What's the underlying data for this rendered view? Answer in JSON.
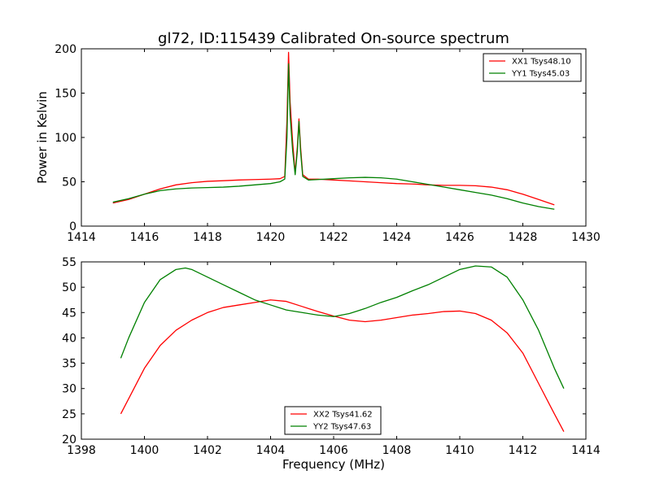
{
  "title": "gl72, ID:115439 Calibrated On-source spectrum",
  "colors": {
    "xx": "#ff0000",
    "yy": "#008000"
  },
  "chart_data": [
    {
      "type": "line",
      "xlabel": "",
      "ylabel": "Power in Kelvin",
      "xlim": [
        1414,
        1430
      ],
      "ylim": [
        0,
        200
      ],
      "xticks": [
        "1414",
        "1416",
        "1418",
        "1420",
        "1422",
        "1424",
        "1426",
        "1428",
        "1430"
      ],
      "yticks": [
        "0",
        "50",
        "100",
        "150",
        "200"
      ],
      "legend_position": "top-right",
      "series": [
        {
          "name": "XX1 Tsys48.10",
          "color": "#ff0000",
          "points": [
            [
              1415.0,
              26
            ],
            [
              1415.5,
              30
            ],
            [
              1416.0,
              36
            ],
            [
              1416.5,
              42
            ],
            [
              1417.0,
              46.5
            ],
            [
              1417.5,
              49
            ],
            [
              1418.0,
              50.5
            ],
            [
              1418.5,
              51.2
            ],
            [
              1419.0,
              52
            ],
            [
              1419.5,
              52.5
            ],
            [
              1420.0,
              53
            ],
            [
              1420.3,
              53.5
            ],
            [
              1420.45,
              56
            ],
            [
              1420.52,
              120
            ],
            [
              1420.57,
              196
            ],
            [
              1420.62,
              140
            ],
            [
              1420.7,
              95
            ],
            [
              1420.78,
              60
            ],
            [
              1420.85,
              90
            ],
            [
              1420.9,
              121
            ],
            [
              1420.95,
              90
            ],
            [
              1421.02,
              58
            ],
            [
              1421.2,
              53
            ],
            [
              1421.5,
              53
            ],
            [
              1422.0,
              52
            ],
            [
              1422.5,
              51
            ],
            [
              1423.0,
              50
            ],
            [
              1423.5,
              49
            ],
            [
              1424.0,
              48
            ],
            [
              1424.5,
              47.5
            ],
            [
              1425.0,
              46.5
            ],
            [
              1425.5,
              46
            ],
            [
              1426.0,
              46
            ],
            [
              1426.5,
              45.5
            ],
            [
              1427.0,
              44
            ],
            [
              1427.5,
              41
            ],
            [
              1428.0,
              36
            ],
            [
              1428.5,
              30
            ],
            [
              1429.0,
              24
            ]
          ]
        },
        {
          "name": "YY1 Tsys45.03",
          "color": "#008000",
          "points": [
            [
              1415.0,
              27
            ],
            [
              1415.5,
              31
            ],
            [
              1416.0,
              36
            ],
            [
              1416.5,
              40
            ],
            [
              1417.0,
              42
            ],
            [
              1417.5,
              43
            ],
            [
              1418.0,
              43.5
            ],
            [
              1418.5,
              44
            ],
            [
              1419.0,
              45
            ],
            [
              1419.5,
              46.5
            ],
            [
              1420.0,
              48
            ],
            [
              1420.3,
              50
            ],
            [
              1420.45,
              53
            ],
            [
              1420.52,
              100
            ],
            [
              1420.57,
              183
            ],
            [
              1420.62,
              125
            ],
            [
              1420.7,
              85
            ],
            [
              1420.78,
              58
            ],
            [
              1420.85,
              85
            ],
            [
              1420.9,
              118
            ],
            [
              1420.95,
              85
            ],
            [
              1421.02,
              56
            ],
            [
              1421.2,
              52
            ],
            [
              1421.5,
              52.5
            ],
            [
              1422.0,
              53.5
            ],
            [
              1422.5,
              54.5
            ],
            [
              1423.0,
              55
            ],
            [
              1423.5,
              54.5
            ],
            [
              1424.0,
              53
            ],
            [
              1424.5,
              50
            ],
            [
              1425.0,
              47
            ],
            [
              1425.5,
              44
            ],
            [
              1426.0,
              41
            ],
            [
              1426.5,
              38
            ],
            [
              1427.0,
              35
            ],
            [
              1427.5,
              31
            ],
            [
              1428.0,
              26
            ],
            [
              1428.5,
              22
            ],
            [
              1429.0,
              19
            ]
          ]
        }
      ]
    },
    {
      "type": "line",
      "xlabel": "Frequency (MHz)",
      "ylabel": "",
      "xlim": [
        1398,
        1414
      ],
      "ylim": [
        20,
        55
      ],
      "xticks": [
        "1398",
        "1400",
        "1402",
        "1404",
        "1406",
        "1408",
        "1410",
        "1412",
        "1414"
      ],
      "yticks": [
        "20",
        "25",
        "30",
        "35",
        "40",
        "45",
        "50",
        "55"
      ],
      "legend_position": "lower-center",
      "series": [
        {
          "name": "XX2 Tsys41.62",
          "color": "#ff0000",
          "points": [
            [
              1399.25,
              25
            ],
            [
              1399.5,
              28
            ],
            [
              1400.0,
              34
            ],
            [
              1400.5,
              38.5
            ],
            [
              1401.0,
              41.5
            ],
            [
              1401.5,
              43.5
            ],
            [
              1402.0,
              45
            ],
            [
              1402.5,
              46
            ],
            [
              1403.0,
              46.5
            ],
            [
              1403.5,
              47
            ],
            [
              1404.0,
              47.5
            ],
            [
              1404.5,
              47.2
            ],
            [
              1405.0,
              46.2
            ],
            [
              1405.5,
              45.2
            ],
            [
              1406.0,
              44.3
            ],
            [
              1406.5,
              43.5
            ],
            [
              1407.0,
              43.2
            ],
            [
              1407.5,
              43.5
            ],
            [
              1408.0,
              44
            ],
            [
              1408.5,
              44.5
            ],
            [
              1409.0,
              44.8
            ],
            [
              1409.5,
              45.2
            ],
            [
              1410.0,
              45.3
            ],
            [
              1410.5,
              44.8
            ],
            [
              1411.0,
              43.5
            ],
            [
              1411.5,
              41
            ],
            [
              1412.0,
              37
            ],
            [
              1412.5,
              31
            ],
            [
              1413.0,
              25
            ],
            [
              1413.3,
              21.5
            ]
          ]
        },
        {
          "name": "YY2 Tsys47.63",
          "color": "#008000",
          "points": [
            [
              1399.25,
              36
            ],
            [
              1399.5,
              40
            ],
            [
              1400.0,
              47
            ],
            [
              1400.5,
              51.5
            ],
            [
              1401.0,
              53.5
            ],
            [
              1401.3,
              53.8
            ],
            [
              1401.5,
              53.5
            ],
            [
              1402.0,
              52
            ],
            [
              1402.5,
              50.5
            ],
            [
              1403.0,
              49
            ],
            [
              1403.5,
              47.5
            ],
            [
              1404.0,
              46.5
            ],
            [
              1404.5,
              45.5
            ],
            [
              1405.0,
              45
            ],
            [
              1405.5,
              44.5
            ],
            [
              1406.0,
              44.2
            ],
            [
              1406.5,
              44.8
            ],
            [
              1407.0,
              45.8
            ],
            [
              1407.5,
              47
            ],
            [
              1408.0,
              48
            ],
            [
              1408.5,
              49.3
            ],
            [
              1409.0,
              50.5
            ],
            [
              1409.5,
              52
            ],
            [
              1410.0,
              53.5
            ],
            [
              1410.5,
              54.2
            ],
            [
              1411.0,
              54
            ],
            [
              1411.5,
              52
            ],
            [
              1412.0,
              47.5
            ],
            [
              1412.5,
              41.5
            ],
            [
              1413.0,
              34
            ],
            [
              1413.3,
              30
            ]
          ]
        }
      ]
    }
  ]
}
